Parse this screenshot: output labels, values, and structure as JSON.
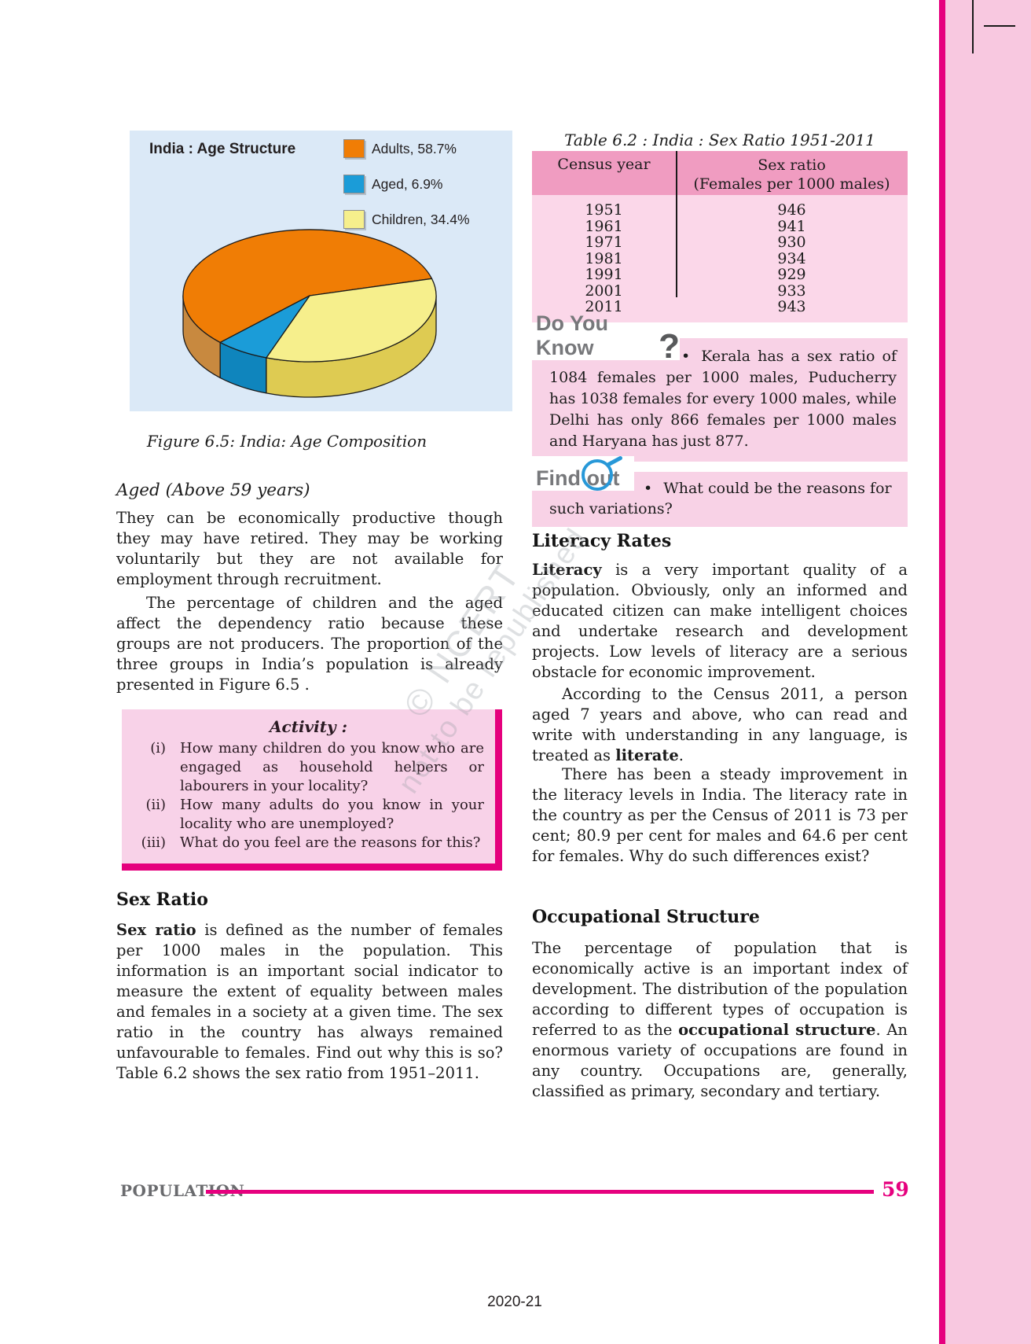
{
  "colors": {
    "magenta": "#E6007E",
    "band_pink": "#F8C8E0",
    "box_pink": "#F8D2E6",
    "activity_pink": "#F8D2E8",
    "table_header_pink": "#F09CC1",
    "table_body_pink": "#FBD7E9",
    "figure_bg": "#DBE9F7",
    "heading_gray": "#77787B"
  },
  "chart_data": {
    "type": "pie",
    "style": "3d",
    "title": "India : Age Structure",
    "categories": [
      "Adults",
      "Aged",
      "Children"
    ],
    "values": [
      58.7,
      6.9,
      34.4
    ],
    "legend_labels": [
      "Adults, 58.7%",
      "Aged, 6.9%",
      "Children, 34.4%"
    ],
    "colors": [
      "#F07D05",
      "#1B9CD8",
      "#F6EF8C"
    ],
    "side_colors": [
      "#C8893F",
      "#0F85BD",
      "#DECB52"
    ],
    "background": "#DBE9F7",
    "legend_position": "top-right"
  },
  "figure": {
    "caption": "Figure 6.5: India: Age Composition"
  },
  "left_column": {
    "aged_heading": "Aged (Above 59 years)",
    "aged_para": "They can be economically productive though they may have retired. They may be working voluntarily but they are not available for employment through recruitment.",
    "dependency_para": "The percentage of children and the aged affect the dependency ratio because these groups are not producers. The proportion of the three groups in India’s population is already presented in Figure 6.5 .",
    "activity": {
      "title": "Activity :",
      "items": [
        {
          "num": "(i)",
          "text": "How many children do you know who are engaged as household helpers or labourers in your locality?"
        },
        {
          "num": "(ii)",
          "text": "How many adults do you know in your locality who are unemployed?"
        },
        {
          "num": "(iii)",
          "text": "What do you feel are the reasons for this?"
        }
      ]
    },
    "sex_ratio_heading": "Sex Ratio",
    "sex_ratio_para": [
      {
        "b": true,
        "t": "Sex ratio"
      },
      {
        "t": " is defined as the number of females per 1000 males in the population. This information is an important social indicator to measure the extent of equality between males and females in a society at a given time. The sex ratio in the country has always remained unfavourable to females.  Find out why this is so? Table 6.2 shows the sex ratio from 1951–2011."
      }
    ]
  },
  "table": {
    "caption": "Table 6.2 : India : Sex Ratio 1951-2011",
    "col1_header": "Census year",
    "col2_header_line1": "Sex ratio",
    "col2_header_line2": "(Females per 1000 males)",
    "rows": [
      [
        "1951",
        "946"
      ],
      [
        "1961",
        "941"
      ],
      [
        "1971",
        "930"
      ],
      [
        "1981",
        "934"
      ],
      [
        "1991",
        "929"
      ],
      [
        "2001",
        "933"
      ],
      [
        "2011",
        "943"
      ]
    ]
  },
  "do_you_know": {
    "heading": "Do You Know",
    "qmark": "?",
    "bullet": "•",
    "text": "Kerala has a sex ratio of 1084 females per 1000 males, Puducherry has 1038 females for every 1000 males, while Delhi has only 866 females per 1000 males and Haryana has just 877."
  },
  "find_out": {
    "heading": "Find out",
    "bullet": "•",
    "text": "What could be the reasons for such variations?"
  },
  "right_column": {
    "literacy_heading": "Literacy Rates",
    "literacy_para1": [
      {
        "b": true,
        "t": "Literacy"
      },
      {
        "t": " is a very important quality of a population. Obviously, only an informed and educated citizen can make intelligent choices and undertake research and development projects. Low levels of literacy are a serious obstacle for economic improvement."
      }
    ],
    "literacy_para2": [
      {
        "t": "According to the Census 2011, a person aged 7 years and above, who can read and write with understanding in any language, is treated as "
      },
      {
        "b": true,
        "t": "literate"
      },
      {
        "t": "."
      }
    ],
    "literacy_para3": [
      {
        "t": "There has been a steady improvement in the literacy levels in India.  The literacy rate in the country as per the Census of 2011 is 73 per cent; 80.9 per cent for males and 64.6 per cent for females. Why do such differences exist?"
      }
    ],
    "occupational_heading": "Occupational Structure",
    "occupational_para": [
      {
        "t": "The percentage of population that is economically active is an important index of development. The distribution of the population according to different types of occupation is referred to as the "
      },
      {
        "b": true,
        "t": "occupational structure"
      },
      {
        "t": ". An enormous variety of occupations are found in any country. Occupations are, generally, classified as primary, secondary and tertiary."
      }
    ]
  },
  "watermark": {
    "line1": "© NCERT",
    "line2": "not to be republished"
  },
  "footer": {
    "section": "POPULATION",
    "page": "59",
    "year": "2020-21"
  }
}
